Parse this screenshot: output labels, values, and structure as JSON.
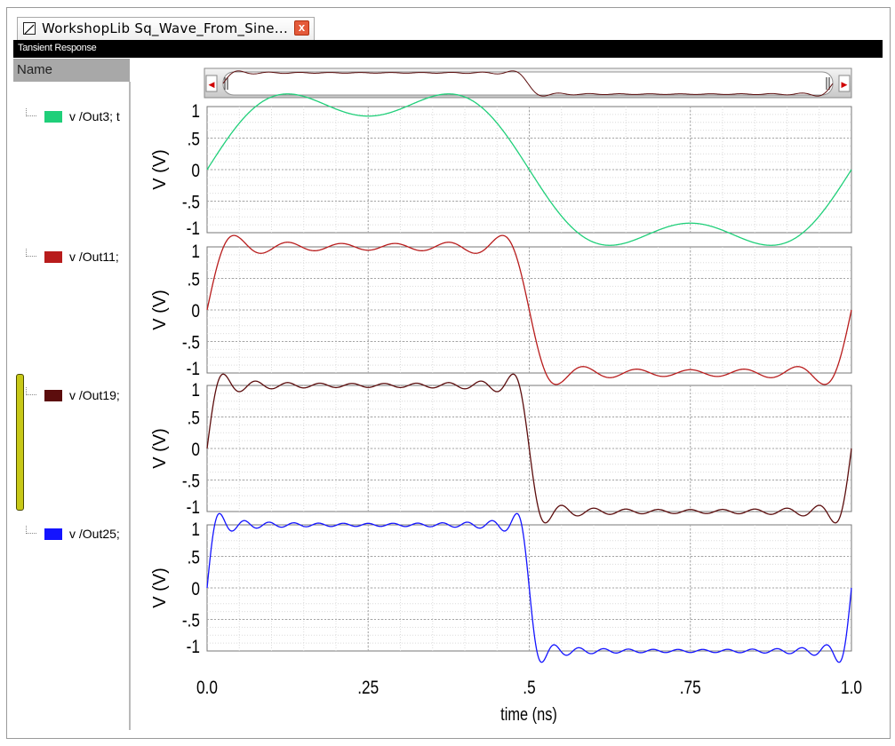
{
  "window": {
    "tab_title": "WorkshopLib Sq_Wave_From_Sine...",
    "close_glyph": "x",
    "panel_title": "Tansient Response"
  },
  "sidebar": {
    "header": "Name",
    "items": [
      {
        "label": "v /Out3; t",
        "color": "#1fcf79"
      },
      {
        "label": "v /Out11;",
        "color": "#b81c1c"
      },
      {
        "label": "v /Out19;",
        "color": "#5c0d0d"
      },
      {
        "label": "v /Out25;",
        "color": "#1414ff"
      }
    ]
  },
  "chart_data": {
    "type": "line",
    "xlabel": "time (ns)",
    "x_ticks": [
      "0.0",
      ".25",
      ".5",
      ".75",
      "1.0"
    ],
    "xlim": [
      0,
      1.0
    ],
    "grid": true,
    "panels": [
      {
        "ylabel": "V (V)",
        "yticks": [
          "1",
          ".5",
          "0",
          "-.5",
          "-1"
        ],
        "ylim": [
          -1,
          1
        ],
        "series": {
          "name": "v /Out3; t",
          "color": "#1fcf79",
          "harmonics": [
            1,
            3
          ]
        }
      },
      {
        "ylabel": "V (V)",
        "yticks": [
          "1",
          ".5",
          "0",
          "-.5",
          "-1"
        ],
        "ylim": [
          -1,
          1
        ],
        "series": {
          "name": "v /Out11;",
          "color": "#b81c1c",
          "harmonics": [
            1,
            3,
            5,
            7,
            9,
            11
          ]
        }
      },
      {
        "ylabel": "V (V)",
        "yticks": [
          "1",
          ".5",
          "0",
          "-.5",
          "-1"
        ],
        "ylim": [
          -1,
          1
        ],
        "series": {
          "name": "v /Out19;",
          "color": "#5c0d0d",
          "harmonics": [
            1,
            3,
            5,
            7,
            9,
            11,
            13,
            15,
            17,
            19
          ]
        }
      },
      {
        "ylabel": "V (V)",
        "yticks": [
          "1",
          ".5",
          "0",
          "-.5",
          "-1"
        ],
        "ylim": [
          -1,
          1
        ],
        "series": {
          "name": "v /Out25;",
          "color": "#1414ff",
          "harmonics": [
            1,
            3,
            5,
            7,
            9,
            11,
            13,
            15,
            17,
            19,
            21,
            23,
            25
          ]
        }
      }
    ]
  },
  "scrollbar": {
    "left_arrow": "◀",
    "right_arrow": "▶"
  }
}
